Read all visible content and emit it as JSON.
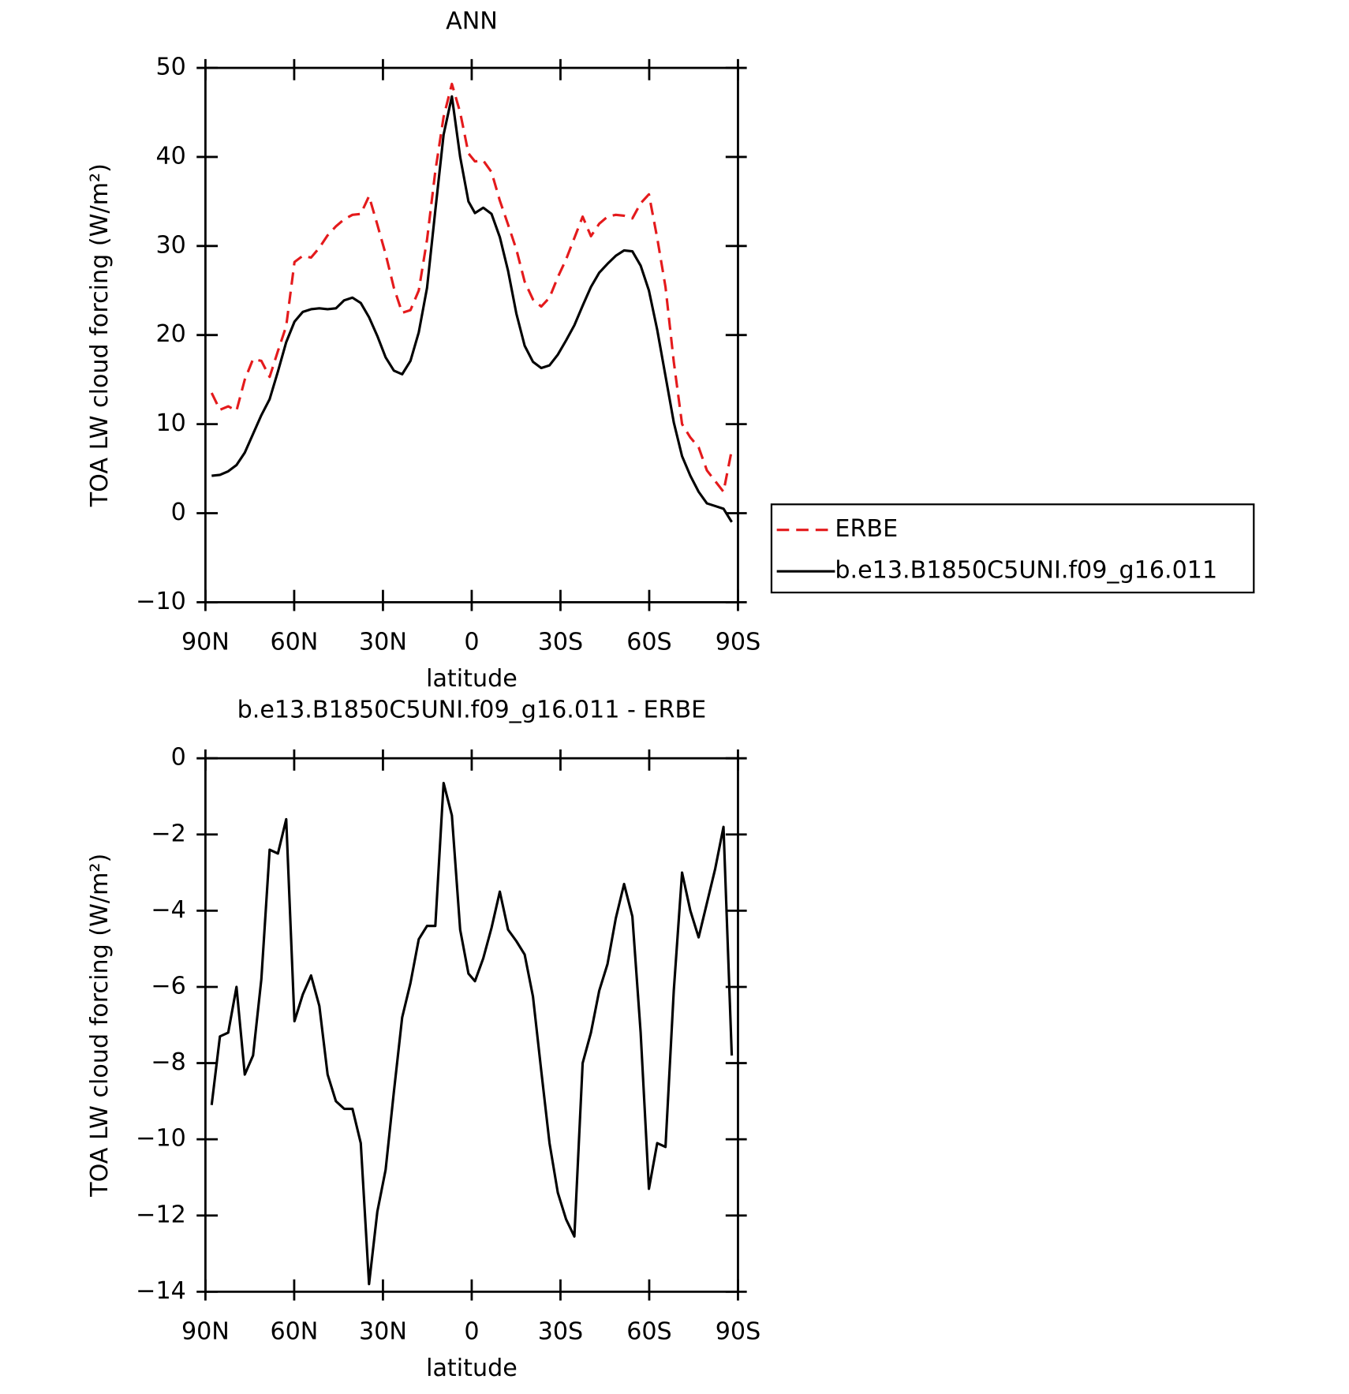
{
  "chart_data": [
    {
      "type": "line",
      "title": "ANN",
      "x_label": "latitude",
      "y_label": "TOA LW cloud forcing (W/m²)",
      "x": [
        87.9,
        85.1,
        82.3,
        79.5,
        76.7,
        73.9,
        71.1,
        68.3,
        65.5,
        62.7,
        59.9,
        57.1,
        54.3,
        51.5,
        48.7,
        45.9,
        43.1,
        40.3,
        37.5,
        34.7,
        31.9,
        29.1,
        26.3,
        23.5,
        20.7,
        17.9,
        15.1,
        12.3,
        9.5,
        6.7,
        3.9,
        1.1,
        -1.1,
        -3.9,
        -6.7,
        -9.5,
        -12.3,
        -15.1,
        -17.9,
        -20.7,
        -23.5,
        -26.3,
        -29.1,
        -31.9,
        -34.7,
        -37.5,
        -40.3,
        -43.1,
        -45.9,
        -48.7,
        -51.5,
        -54.3,
        -57.1,
        -59.9,
        -62.7,
        -65.5,
        -68.3,
        -71.1,
        -73.9,
        -76.7,
        -79.5,
        -82.3,
        -85.1,
        -87.9
      ],
      "series": [
        {
          "name": "ERBE",
          "color": "#e41a1c",
          "style": "dashed",
          "values": [
            13.5,
            11.6,
            12.0,
            11.5,
            15.0,
            17.3,
            17.1,
            15.3,
            18.2,
            21.0,
            28.2,
            28.9,
            28.7,
            29.8,
            31.2,
            32.2,
            33.0,
            33.5,
            33.6,
            35.6,
            32.4,
            29.1,
            25.3,
            22.5,
            22.8,
            25.0,
            30.7,
            38.4,
            44.5,
            48.2,
            45.0,
            40.4,
            39.5,
            39.6,
            38.3,
            35.1,
            32.4,
            29.6,
            26.0,
            24.0,
            23.2,
            24.2,
            26.5,
            28.5,
            30.9,
            33.3,
            31.1,
            32.5,
            33.3,
            33.5,
            33.4,
            33.1,
            34.8,
            35.8,
            30.9,
            25.4,
            17.0,
            10.0,
            8.5,
            7.4,
            4.8,
            3.6,
            2.4,
            7.1
          ]
        },
        {
          "name": "b.e13.B1850C5UNI.f09_g16.011",
          "color": "#000000",
          "style": "solid",
          "values": [
            4.2,
            4.3,
            4.7,
            5.4,
            6.8,
            8.9,
            11.0,
            12.8,
            15.9,
            19.2,
            21.5,
            22.6,
            22.9,
            23.0,
            22.9,
            23.0,
            23.9,
            24.2,
            23.6,
            22.0,
            19.9,
            17.5,
            16.0,
            15.6,
            17.1,
            20.3,
            25.3,
            34.0,
            42.5,
            46.8,
            40.0,
            35.0,
            33.7,
            34.3,
            33.6,
            31.0,
            27.2,
            22.4,
            18.8,
            17.0,
            16.3,
            16.6,
            17.8,
            19.4,
            21.1,
            23.3,
            25.4,
            27.0,
            28.0,
            28.9,
            29.5,
            29.4,
            27.8,
            25.0,
            20.6,
            15.4,
            10.2,
            6.4,
            4.2,
            2.4,
            1.1,
            0.8,
            0.5,
            -1.0
          ]
        }
      ],
      "xlim": [
        90,
        -90
      ],
      "xticks": [
        {
          "value": 90,
          "label": "90N"
        },
        {
          "value": 60,
          "label": "60N"
        },
        {
          "value": 30,
          "label": "30N"
        },
        0,
        {
          "value": -30,
          "label": "30S"
        },
        {
          "value": -60,
          "label": "60S"
        },
        {
          "value": -90,
          "label": "90S"
        }
      ],
      "ylim": [
        -10,
        50
      ],
      "yticks": [
        {
          "value": -10,
          "label": "−10"
        },
        0,
        10,
        20,
        30,
        40,
        50
      ],
      "legend": "right"
    },
    {
      "type": "line",
      "title": "b.e13.B1850C5UNI.f09_g16.011 - ERBE",
      "x_label": "latitude",
      "y_label": "TOA LW cloud forcing (W/m²)",
      "x": [
        87.9,
        85.1,
        82.3,
        79.5,
        76.7,
        73.9,
        71.1,
        68.3,
        65.5,
        62.7,
        59.9,
        57.1,
        54.3,
        51.5,
        48.7,
        45.9,
        43.1,
        40.3,
        37.5,
        34.7,
        31.9,
        29.1,
        26.3,
        23.5,
        20.7,
        17.9,
        15.1,
        12.3,
        9.5,
        6.7,
        3.9,
        1.1,
        -1.1,
        -3.9,
        -6.7,
        -9.5,
        -12.3,
        -15.1,
        -17.9,
        -20.7,
        -23.5,
        -26.3,
        -29.1,
        -31.9,
        -34.7,
        -37.5,
        -40.3,
        -43.1,
        -45.9,
        -48.7,
        -51.5,
        -54.3,
        -57.1,
        -59.9,
        -62.7,
        -65.5,
        -68.3,
        -71.1,
        -73.9,
        -76.7,
        -79.5,
        -82.3,
        -85.1,
        -87.9
      ],
      "values": [
        -9.1,
        -7.3,
        -7.2,
        -6.0,
        -8.3,
        -7.8,
        -5.8,
        -2.4,
        -2.5,
        -1.6,
        -6.9,
        -6.2,
        -5.7,
        -6.5,
        -8.3,
        -9.0,
        -9.2,
        -9.2,
        -10.1,
        -13.8,
        -11.9,
        -10.8,
        -8.75,
        -6.8,
        -5.9,
        -4.75,
        -4.4,
        -4.4,
        -0.65,
        -1.5,
        -4.5,
        -5.65,
        -5.85,
        -5.25,
        -4.45,
        -3.5,
        -4.5,
        -4.8,
        -5.15,
        -6.25,
        -8.2,
        -10.1,
        -11.4,
        -12.1,
        -12.55,
        -8.0,
        -7.2,
        -6.1,
        -5.4,
        -4.2,
        -3.3,
        -4.15,
        -7.2,
        -11.3,
        -10.1,
        -10.2,
        -6.1,
        -3.0,
        -4.0,
        -4.7,
        -3.8,
        -2.9,
        -1.8,
        -7.8
      ],
      "color": "#000000",
      "xlim": [
        90,
        -90
      ],
      "xticks": [
        {
          "value": 90,
          "label": "90N"
        },
        {
          "value": 60,
          "label": "60N"
        },
        {
          "value": 30,
          "label": "30N"
        },
        0,
        {
          "value": -30,
          "label": "30S"
        },
        {
          "value": -60,
          "label": "60S"
        },
        {
          "value": -90,
          "label": "90S"
        }
      ],
      "ylim": [
        -14,
        0
      ],
      "yticks": [
        {
          "value": -14,
          "label": "−14"
        },
        {
          "value": -12,
          "label": "−12"
        },
        {
          "value": -10,
          "label": "−10"
        },
        {
          "value": -8,
          "label": "−8"
        },
        {
          "value": -6,
          "label": "−6"
        },
        {
          "value": -4,
          "label": "−4"
        },
        {
          "value": -2,
          "label": "−2"
        },
        0
      ]
    }
  ]
}
